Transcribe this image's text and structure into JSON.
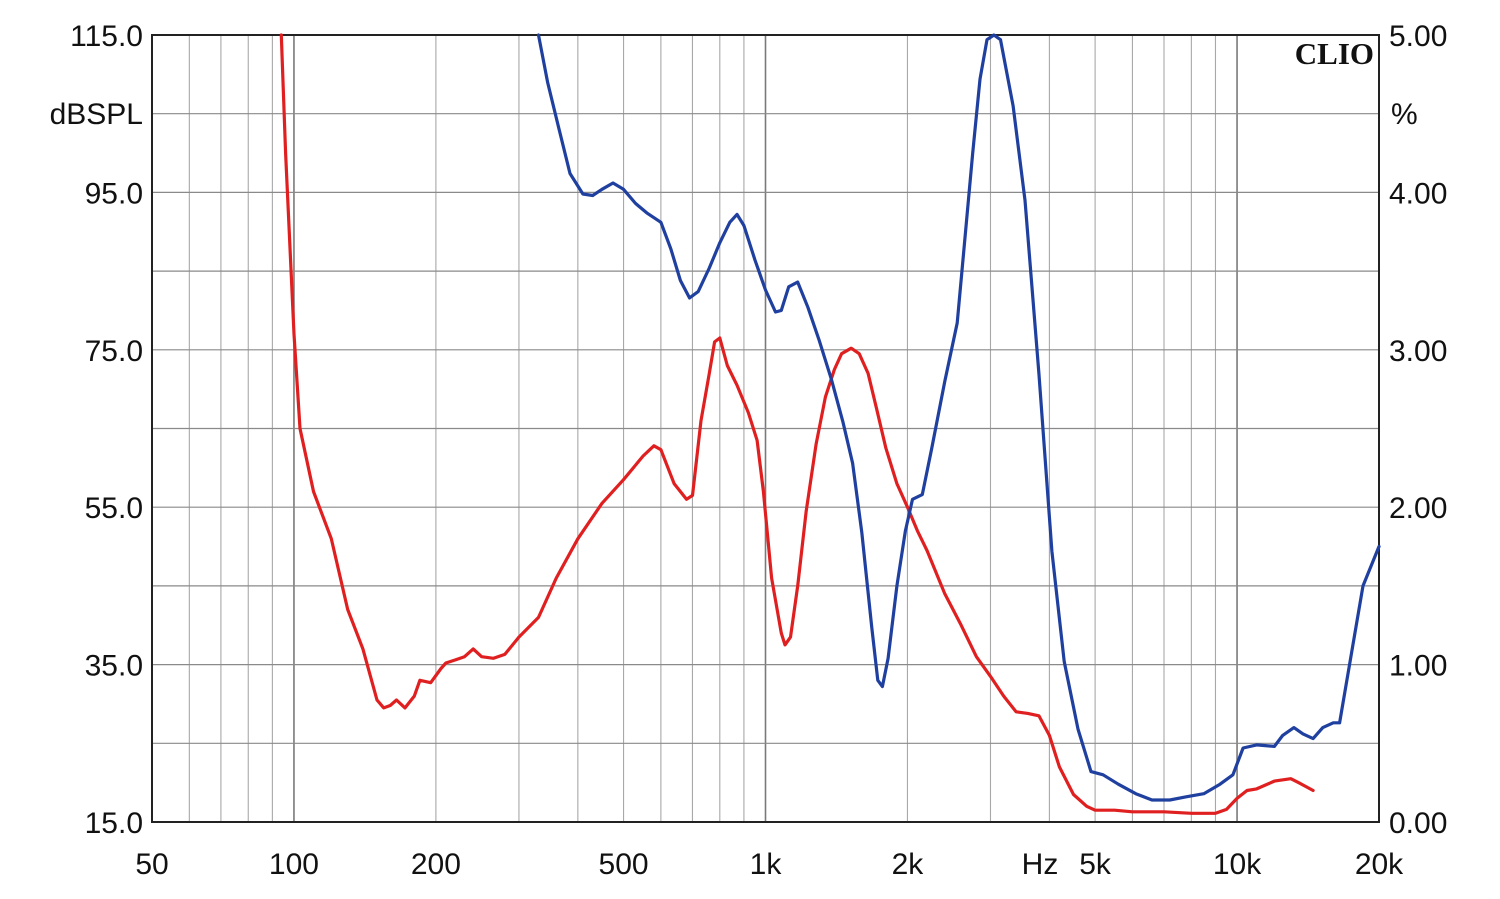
{
  "chart_data": {
    "type": "line",
    "brand": "CLIO",
    "xaxis": {
      "scale": "log",
      "range": [
        50,
        20000
      ],
      "unit_label": "Hz",
      "tick_values": [
        50,
        100,
        200,
        500,
        1000,
        2000,
        5000,
        10000,
        20000
      ],
      "tick_labels": [
        "50",
        "100",
        "200",
        "500",
        "1k",
        "2k",
        "5k",
        "10k",
        "20k"
      ]
    },
    "yaxis_left": {
      "unit": "dBSPL",
      "range": [
        15,
        115
      ],
      "tick_values": [
        115,
        95,
        75,
        55,
        35,
        15
      ],
      "tick_labels": [
        "115.0",
        "95.0",
        "75.0",
        "55.0",
        "35.0",
        "15.0"
      ]
    },
    "yaxis_right": {
      "unit": "%",
      "range": [
        0,
        5
      ],
      "tick_values": [
        5,
        4,
        3,
        2,
        1,
        0
      ],
      "tick_labels": [
        "5.00",
        "4.00",
        "3.00",
        "2.00",
        "1.00",
        "0.00"
      ]
    },
    "grid": true,
    "series": [
      {
        "color": "#e02020",
        "axis": "left",
        "points": [
          [
            94,
            115
          ],
          [
            96,
            100
          ],
          [
            100,
            77
          ],
          [
            103,
            65
          ],
          [
            110,
            57
          ],
          [
            120,
            51
          ],
          [
            130,
            42
          ],
          [
            140,
            37
          ],
          [
            150,
            30.5
          ],
          [
            155,
            29.5
          ],
          [
            160,
            29.8
          ],
          [
            165,
            30.5
          ],
          [
            172,
            29.5
          ],
          [
            180,
            31
          ],
          [
            185,
            33
          ],
          [
            195,
            32.7
          ],
          [
            205,
            34.5
          ],
          [
            210,
            35.2
          ],
          [
            220,
            35.6
          ],
          [
            230,
            36
          ],
          [
            240,
            37
          ],
          [
            250,
            36
          ],
          [
            265,
            35.8
          ],
          [
            280,
            36.3
          ],
          [
            300,
            38.5
          ],
          [
            330,
            41
          ],
          [
            360,
            46
          ],
          [
            400,
            51
          ],
          [
            450,
            55.5
          ],
          [
            500,
            58.5
          ],
          [
            550,
            61.5
          ],
          [
            580,
            62.8
          ],
          [
            600,
            62.3
          ],
          [
            640,
            58
          ],
          [
            680,
            56
          ],
          [
            700,
            56.5
          ],
          [
            730,
            66
          ],
          [
            760,
            72
          ],
          [
            780,
            76
          ],
          [
            800,
            76.5
          ],
          [
            830,
            73
          ],
          [
            870,
            70.5
          ],
          [
            920,
            67
          ],
          [
            960,
            63.5
          ],
          [
            990,
            57
          ],
          [
            1030,
            46
          ],
          [
            1080,
            39
          ],
          [
            1100,
            37.5
          ],
          [
            1130,
            38.5
          ],
          [
            1170,
            45
          ],
          [
            1220,
            54.5
          ],
          [
            1280,
            63
          ],
          [
            1340,
            69
          ],
          [
            1400,
            72.5
          ],
          [
            1450,
            74.5
          ],
          [
            1520,
            75.2
          ],
          [
            1580,
            74.5
          ],
          [
            1650,
            72
          ],
          [
            1720,
            67.5
          ],
          [
            1800,
            62.5
          ],
          [
            1900,
            58
          ],
          [
            2000,
            55
          ],
          [
            2100,
            52
          ],
          [
            2200,
            49.5
          ],
          [
            2400,
            44
          ],
          [
            2600,
            40
          ],
          [
            2800,
            36
          ],
          [
            3000,
            33.5
          ],
          [
            3200,
            31
          ],
          [
            3400,
            29
          ],
          [
            3600,
            28.8
          ],
          [
            3800,
            28.5
          ],
          [
            4000,
            26
          ],
          [
            4200,
            22
          ],
          [
            4500,
            18.5
          ],
          [
            4800,
            17
          ],
          [
            5000,
            16.5
          ],
          [
            5500,
            16.5
          ],
          [
            6000,
            16.3
          ],
          [
            7000,
            16.3
          ],
          [
            8000,
            16.1
          ],
          [
            9000,
            16.1
          ],
          [
            9500,
            16.6
          ],
          [
            10000,
            18
          ],
          [
            10500,
            19
          ],
          [
            11000,
            19.2
          ],
          [
            12000,
            20.2
          ],
          [
            13000,
            20.5
          ],
          [
            13500,
            20
          ],
          [
            14000,
            19.5
          ],
          [
            14500,
            19
          ]
        ]
      },
      {
        "color": "#2040a0",
        "axis": "right",
        "points": [
          [
            330,
            5
          ],
          [
            345,
            4.7
          ],
          [
            365,
            4.4
          ],
          [
            385,
            4.12
          ],
          [
            410,
            3.99
          ],
          [
            430,
            3.98
          ],
          [
            450,
            4.02
          ],
          [
            475,
            4.06
          ],
          [
            500,
            4.02
          ],
          [
            530,
            3.93
          ],
          [
            560,
            3.87
          ],
          [
            600,
            3.81
          ],
          [
            630,
            3.64
          ],
          [
            660,
            3.44
          ],
          [
            690,
            3.33
          ],
          [
            720,
            3.37
          ],
          [
            760,
            3.52
          ],
          [
            800,
            3.68
          ],
          [
            840,
            3.81
          ],
          [
            870,
            3.86
          ],
          [
            900,
            3.79
          ],
          [
            950,
            3.57
          ],
          [
            1000,
            3.38
          ],
          [
            1050,
            3.24
          ],
          [
            1080,
            3.25
          ],
          [
            1120,
            3.4
          ],
          [
            1170,
            3.43
          ],
          [
            1230,
            3.27
          ],
          [
            1300,
            3.06
          ],
          [
            1380,
            2.81
          ],
          [
            1460,
            2.54
          ],
          [
            1530,
            2.28
          ],
          [
            1600,
            1.84
          ],
          [
            1680,
            1.24
          ],
          [
            1730,
            0.9
          ],
          [
            1770,
            0.86
          ],
          [
            1820,
            1.04
          ],
          [
            1900,
            1.5
          ],
          [
            1980,
            1.85
          ],
          [
            2050,
            2.05
          ],
          [
            2150,
            2.08
          ],
          [
            2250,
            2.37
          ],
          [
            2400,
            2.8
          ],
          [
            2550,
            3.17
          ],
          [
            2650,
            3.72
          ],
          [
            2750,
            4.25
          ],
          [
            2850,
            4.72
          ],
          [
            2950,
            4.97
          ],
          [
            3050,
            5
          ],
          [
            3150,
            4.97
          ],
          [
            3350,
            4.55
          ],
          [
            3550,
            3.95
          ],
          [
            3800,
            2.85
          ],
          [
            4050,
            1.72
          ],
          [
            4300,
            1.02
          ],
          [
            4600,
            0.59
          ],
          [
            4900,
            0.32
          ],
          [
            5200,
            0.3
          ],
          [
            5600,
            0.24
          ],
          [
            6100,
            0.18
          ],
          [
            6600,
            0.14
          ],
          [
            7200,
            0.14
          ],
          [
            7800,
            0.16
          ],
          [
            8500,
            0.18
          ],
          [
            9200,
            0.24
          ],
          [
            9800,
            0.3
          ],
          [
            10300,
            0.47
          ],
          [
            11000,
            0.49
          ],
          [
            12000,
            0.48
          ],
          [
            12500,
            0.55
          ],
          [
            13200,
            0.6
          ],
          [
            13800,
            0.56
          ],
          [
            14500,
            0.53
          ],
          [
            15200,
            0.6
          ],
          [
            16000,
            0.63
          ],
          [
            16500,
            0.63
          ],
          [
            17500,
            1.08
          ],
          [
            18500,
            1.5
          ],
          [
            20000,
            1.75
          ]
        ]
      }
    ]
  }
}
